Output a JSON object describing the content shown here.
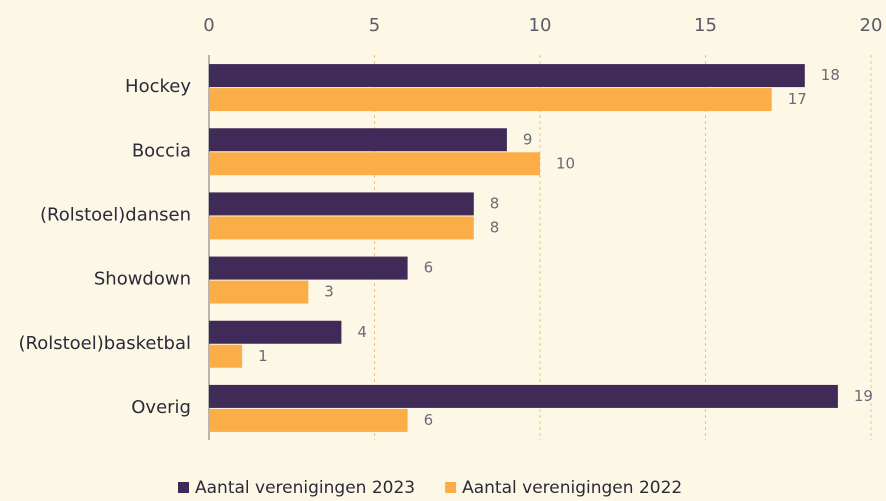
{
  "chart_data": {
    "type": "bar",
    "orientation": "horizontal",
    "categories": [
      "Hockey",
      "Boccia",
      "(Rolstoel)dansen",
      "Showdown",
      "(Rolstoel)basketbal",
      "Overig"
    ],
    "series": [
      {
        "name": "Aantal verenigingen 2023",
        "color": "#3f2a58",
        "values": [
          18,
          9,
          8,
          6,
          4,
          19
        ]
      },
      {
        "name": "Aantal verenigingen 2022",
        "color": "#fbad47",
        "values": [
          17,
          10,
          8,
          3,
          1,
          6
        ]
      }
    ],
    "xlim": [
      0,
      20
    ],
    "xticks": [
      0,
      5,
      10,
      15,
      20
    ],
    "grid": true,
    "legend": "bottom"
  }
}
